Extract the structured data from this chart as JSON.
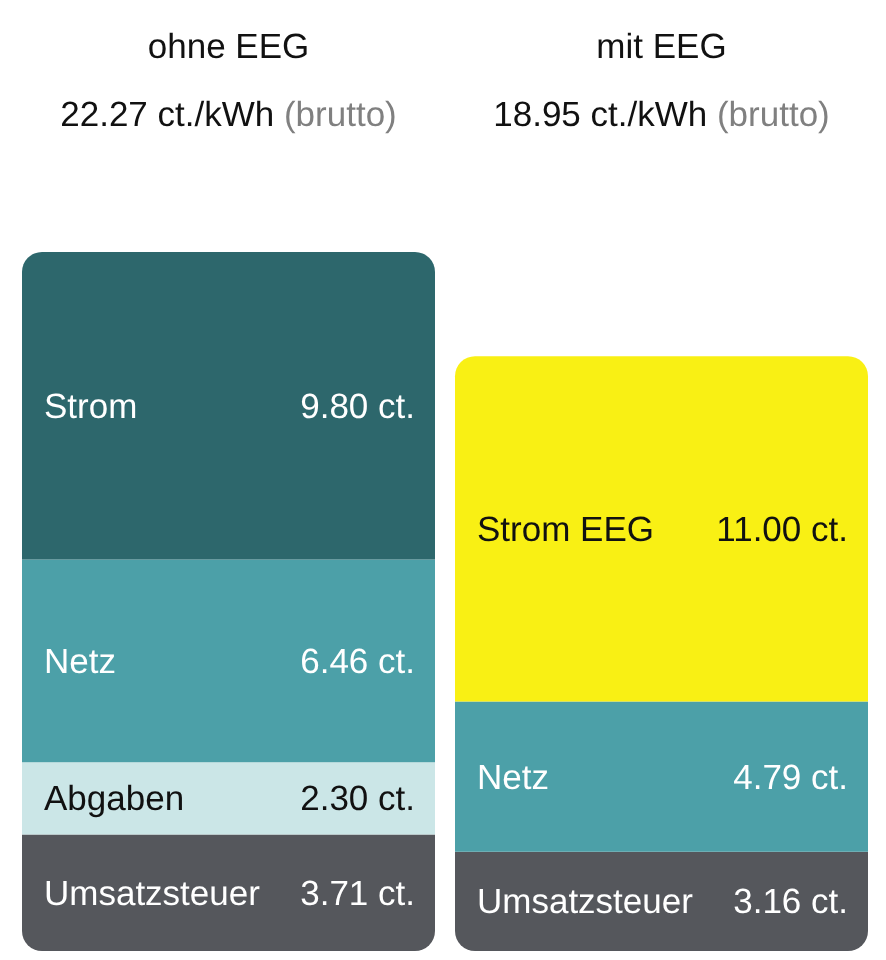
{
  "chart_data": {
    "type": "bar",
    "stacked": true,
    "tick_labels": "x",
    "categories": [
      "ohne EEG",
      "mit EEG"
    ],
    "annotations": [
      "22.27 ct./kWh (brutto)",
      "18.95 ct./kWh (brutto)"
    ],
    "series": [
      {
        "name": "Umsatzsteuer",
        "color": "#55575c",
        "values": [
          3.71,
          3.16
        ],
        "value_labels": [
          "3.71 ct.",
          "3.16 ct."
        ]
      },
      {
        "name": "Abgaben",
        "color": "#cbe6e7",
        "values": [
          2.3,
          null
        ],
        "value_labels": [
          "2.30 ct.",
          null
        ]
      },
      {
        "name": "Netz",
        "color": "#4ca0a8",
        "values": [
          6.46,
          4.79
        ],
        "value_labels": [
          "6.46 ct.",
          "4.79 ct."
        ]
      },
      {
        "name": "Strom",
        "color": "#2d676c",
        "values": [
          9.8,
          null
        ],
        "value_labels": [
          "9.80 ct.",
          null
        ]
      },
      {
        "name": "Strom EEG",
        "color": "#f9f014",
        "values": [
          null,
          11.0
        ],
        "value_labels": [
          null,
          "11.00 ct."
        ]
      }
    ]
  }
}
